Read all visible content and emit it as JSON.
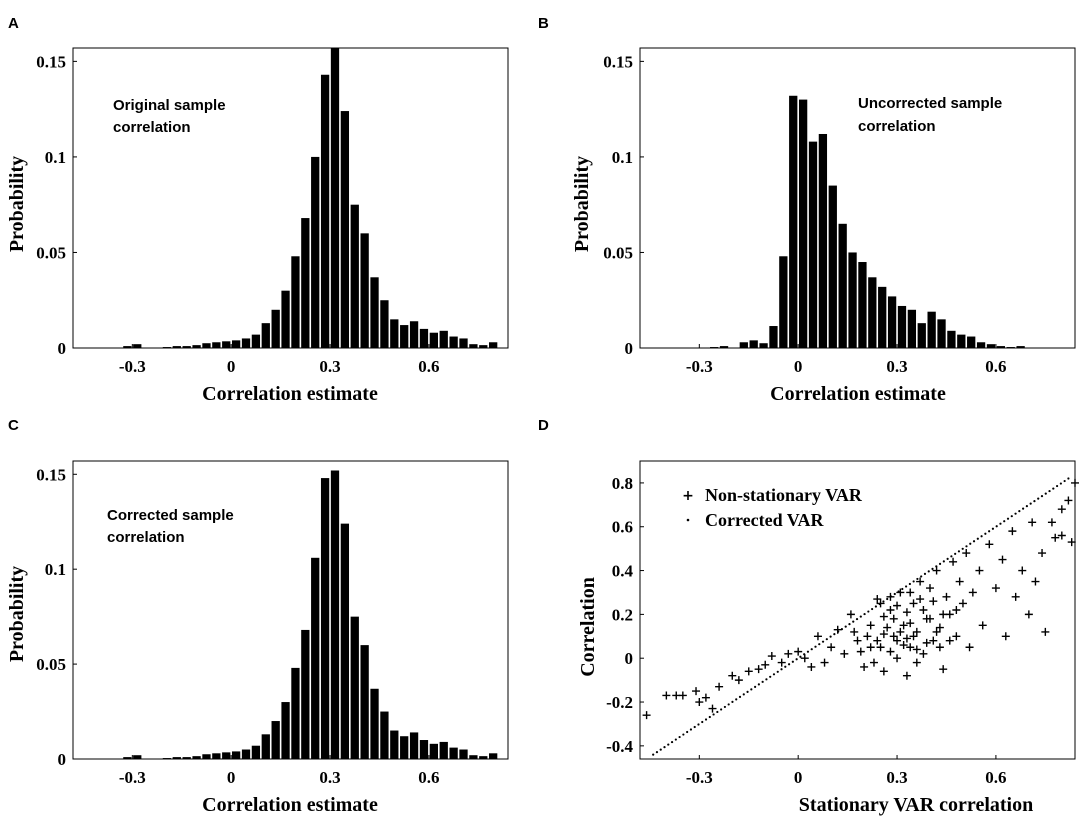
{
  "colors": {
    "bars": "#000000",
    "axes": "#000000",
    "background": "#ffffff"
  },
  "chart_data": [
    {
      "type": "bar",
      "panel": "A",
      "annotation": [
        "Original sample",
        "correlation"
      ],
      "xlabel": "Correlation estimate",
      "ylabel": "Probability",
      "xlim": [
        -0.48,
        0.84
      ],
      "ylim": [
        0,
        0.157
      ],
      "xticks": [
        -0.3,
        0,
        0.3,
        0.6
      ],
      "xtick_labels": [
        "-0.3",
        "0",
        "0.3",
        "0.6"
      ],
      "yticks": [
        0,
        0.05,
        0.1,
        0.15
      ],
      "ytick_labels": [
        "0",
        "0.05",
        "0.1",
        "0.15"
      ],
      "bin_width": 0.03,
      "bin_centers": [
        -0.435,
        -0.405,
        -0.375,
        -0.345,
        -0.315,
        -0.285,
        -0.255,
        -0.225,
        -0.195,
        -0.165,
        -0.135,
        -0.105,
        -0.075,
        -0.045,
        -0.015,
        0.015,
        0.045,
        0.075,
        0.105,
        0.135,
        0.165,
        0.195,
        0.225,
        0.255,
        0.285,
        0.315,
        0.345,
        0.375,
        0.405,
        0.435,
        0.465,
        0.495,
        0.525,
        0.555,
        0.585,
        0.615,
        0.645,
        0.675,
        0.705,
        0.735,
        0.765,
        0.795
      ],
      "values": [
        0,
        0,
        0,
        0,
        0.001,
        0.002,
        0,
        0,
        0.0005,
        0.001,
        0.001,
        0.0015,
        0.0025,
        0.003,
        0.0035,
        0.004,
        0.005,
        0.007,
        0.013,
        0.02,
        0.03,
        0.048,
        0.068,
        0.1,
        0.143,
        0.157,
        0.124,
        0.075,
        0.06,
        0.037,
        0.025,
        0.015,
        0.012,
        0.014,
        0.01,
        0.008,
        0.009,
        0.006,
        0.005,
        0.002,
        0.0015,
        0.003
      ]
    },
    {
      "type": "bar",
      "panel": "B",
      "annotation": [
        "Uncorrected sample",
        "correlation"
      ],
      "xlabel": "Correlation estimate",
      "ylabel": "Probability",
      "xlim": [
        -0.48,
        0.84
      ],
      "ylim": [
        0,
        0.157
      ],
      "xticks": [
        -0.3,
        0,
        0.3,
        0.6
      ],
      "xtick_labels": [
        "-0.3",
        "0",
        "0.3",
        "0.6"
      ],
      "yticks": [
        0,
        0.05,
        0.1,
        0.15
      ],
      "ytick_labels": [
        "0",
        "0.05",
        "0.1",
        "0.15"
      ],
      "bin_width": 0.03,
      "bin_centers": [
        -0.435,
        -0.405,
        -0.375,
        -0.345,
        -0.315,
        -0.285,
        -0.255,
        -0.225,
        -0.195,
        -0.165,
        -0.135,
        -0.105,
        -0.075,
        -0.045,
        -0.015,
        0.015,
        0.045,
        0.075,
        0.105,
        0.135,
        0.165,
        0.195,
        0.225,
        0.255,
        0.285,
        0.315,
        0.345,
        0.375,
        0.405,
        0.435,
        0.465,
        0.495,
        0.525,
        0.555,
        0.585,
        0.615,
        0.645,
        0.675,
        0.705,
        0.735,
        0.765,
        0.795
      ],
      "values": [
        0,
        0,
        0,
        0,
        0,
        0,
        0.0005,
        0.001,
        0,
        0.003,
        0.004,
        0.0025,
        0.0115,
        0.048,
        0.132,
        0.13,
        0.108,
        0.112,
        0.085,
        0.065,
        0.05,
        0.045,
        0.037,
        0.032,
        0.027,
        0.022,
        0.02,
        0.013,
        0.019,
        0.015,
        0.009,
        0.007,
        0.006,
        0.003,
        0.002,
        0.001,
        0.0005,
        0.001,
        0,
        0,
        0,
        0
      ]
    },
    {
      "type": "bar",
      "panel": "C",
      "annotation": [
        "Corrected sample",
        "correlation"
      ],
      "xlabel": "Correlation estimate",
      "ylabel": "Probability",
      "xlim": [
        -0.48,
        0.84
      ],
      "ylim": [
        0,
        0.157
      ],
      "xticks": [
        -0.3,
        0,
        0.3,
        0.6
      ],
      "xtick_labels": [
        "-0.3",
        "0",
        "0.3",
        "0.6"
      ],
      "yticks": [
        0,
        0.05,
        0.1,
        0.15
      ],
      "ytick_labels": [
        "0",
        "0.05",
        "0.1",
        "0.15"
      ],
      "bin_width": 0.03,
      "bin_centers": [
        -0.435,
        -0.405,
        -0.375,
        -0.345,
        -0.315,
        -0.285,
        -0.255,
        -0.225,
        -0.195,
        -0.165,
        -0.135,
        -0.105,
        -0.075,
        -0.045,
        -0.015,
        0.015,
        0.045,
        0.075,
        0.105,
        0.135,
        0.165,
        0.195,
        0.225,
        0.255,
        0.285,
        0.315,
        0.345,
        0.375,
        0.405,
        0.435,
        0.465,
        0.495,
        0.525,
        0.555,
        0.585,
        0.615,
        0.645,
        0.675,
        0.705,
        0.735,
        0.765,
        0.795
      ],
      "values": [
        0,
        0,
        0,
        0,
        0.001,
        0.002,
        0,
        0,
        0.0005,
        0.001,
        0.001,
        0.0015,
        0.0025,
        0.003,
        0.0035,
        0.004,
        0.005,
        0.007,
        0.013,
        0.02,
        0.03,
        0.048,
        0.068,
        0.106,
        0.148,
        0.152,
        0.124,
        0.075,
        0.06,
        0.037,
        0.025,
        0.015,
        0.012,
        0.014,
        0.01,
        0.008,
        0.009,
        0.006,
        0.005,
        0.002,
        0.0015,
        0.003
      ]
    },
    {
      "type": "scatter",
      "panel": "D",
      "xlabel": "Stationary VAR correlation",
      "ylabel": "Correlation",
      "xlim": [
        -0.48,
        0.84
      ],
      "ylim": [
        -0.46,
        0.9
      ],
      "xticks": [
        -0.3,
        0,
        0.3,
        0.6
      ],
      "xtick_labels": [
        "-0.3",
        "0",
        "0.3",
        "0.6"
      ],
      "yticks": [
        -0.4,
        -0.2,
        0,
        0.2,
        0.4,
        0.6,
        0.8
      ],
      "ytick_labels": [
        "-0.4",
        "-0.2",
        "0",
        "0.2",
        "0.4",
        "0.6",
        "0.8"
      ],
      "legend": {
        "placement": "top-left",
        "entries": [
          "Non-stationary VAR",
          "Corrected VAR"
        ]
      },
      "series": [
        {
          "name": "Non-stationary VAR",
          "marker": "+",
          "points": [
            [
              -0.46,
              -0.26
            ],
            [
              -0.4,
              -0.17
            ],
            [
              -0.37,
              -0.17
            ],
            [
              -0.35,
              -0.17
            ],
            [
              -0.31,
              -0.15
            ],
            [
              -0.3,
              -0.2
            ],
            [
              -0.28,
              -0.18
            ],
            [
              -0.26,
              -0.23
            ],
            [
              -0.24,
              -0.13
            ],
            [
              -0.2,
              -0.08
            ],
            [
              -0.18,
              -0.1
            ],
            [
              -0.15,
              -0.06
            ],
            [
              -0.12,
              -0.05
            ],
            [
              -0.1,
              -0.03
            ],
            [
              -0.08,
              0.01
            ],
            [
              -0.05,
              -0.02
            ],
            [
              -0.03,
              0.02
            ],
            [
              0.0,
              0.03
            ],
            [
              0.02,
              0.0
            ],
            [
              0.04,
              -0.04
            ],
            [
              0.06,
              0.1
            ],
            [
              0.08,
              -0.02
            ],
            [
              0.1,
              0.05
            ],
            [
              0.12,
              0.13
            ],
            [
              0.14,
              0.02
            ],
            [
              0.16,
              0.2
            ],
            [
              0.18,
              0.08
            ],
            [
              0.2,
              -0.04
            ],
            [
              0.22,
              0.15
            ],
            [
              0.24,
              0.27
            ],
            [
              0.25,
              0.05
            ],
            [
              0.26,
              -0.06
            ],
            [
              0.28,
              0.22
            ],
            [
              0.29,
              0.1
            ],
            [
              0.3,
              0.0
            ],
            [
              0.31,
              0.3
            ],
            [
              0.32,
              0.15
            ],
            [
              0.33,
              -0.08
            ],
            [
              0.34,
              0.05
            ],
            [
              0.35,
              0.25
            ],
            [
              0.36,
              0.12
            ],
            [
              0.37,
              0.35
            ],
            [
              0.38,
              0.02
            ],
            [
              0.39,
              0.18
            ],
            [
              0.4,
              0.32
            ],
            [
              0.41,
              0.08
            ],
            [
              0.42,
              0.4
            ],
            [
              0.43,
              0.14
            ],
            [
              0.44,
              -0.05
            ],
            [
              0.45,
              0.28
            ],
            [
              0.46,
              0.2
            ],
            [
              0.47,
              0.44
            ],
            [
              0.48,
              0.1
            ],
            [
              0.49,
              0.35
            ],
            [
              0.5,
              0.25
            ],
            [
              0.51,
              0.48
            ],
            [
              0.52,
              0.05
            ],
            [
              0.53,
              0.3
            ],
            [
              0.55,
              0.4
            ],
            [
              0.56,
              0.15
            ],
            [
              0.58,
              0.52
            ],
            [
              0.6,
              0.32
            ],
            [
              0.62,
              0.45
            ],
            [
              0.63,
              0.1
            ],
            [
              0.65,
              0.58
            ],
            [
              0.66,
              0.28
            ],
            [
              0.68,
              0.4
            ],
            [
              0.7,
              0.2
            ],
            [
              0.71,
              0.62
            ],
            [
              0.72,
              0.35
            ],
            [
              0.74,
              0.48
            ],
            [
              0.75,
              0.12
            ],
            [
              0.77,
              0.62
            ],
            [
              0.78,
              0.55
            ],
            [
              0.8,
              0.68
            ],
            [
              0.8,
              0.56
            ],
            [
              0.82,
              0.72
            ],
            [
              0.83,
              0.53
            ],
            [
              0.84,
              0.8
            ],
            [
              0.27,
              0.14
            ],
            [
              0.33,
              0.09
            ],
            [
              0.29,
              0.18
            ],
            [
              0.36,
              0.04
            ],
            [
              0.31,
              0.12
            ],
            [
              0.24,
              0.08
            ],
            [
              0.38,
              0.22
            ],
            [
              0.34,
              0.16
            ],
            [
              0.28,
              0.03
            ],
            [
              0.42,
              0.12
            ],
            [
              0.21,
              0.1
            ],
            [
              0.37,
              0.27
            ],
            [
              0.26,
              0.19
            ],
            [
              0.32,
              0.06
            ],
            [
              0.44,
              0.2
            ],
            [
              0.19,
              0.03
            ],
            [
              0.35,
              0.1
            ],
            [
              0.4,
              0.18
            ],
            [
              0.3,
              0.24
            ],
            [
              0.23,
              -0.02
            ],
            [
              0.46,
              0.08
            ],
            [
              0.25,
              0.25
            ],
            [
              0.33,
              0.21
            ],
            [
              0.39,
              0.07
            ],
            [
              0.28,
              0.28
            ],
            [
              0.17,
              0.12
            ],
            [
              0.41,
              0.26
            ],
            [
              0.36,
              -0.02
            ],
            [
              0.3,
              0.08
            ],
            [
              0.22,
              0.05
            ],
            [
              0.48,
              0.22
            ],
            [
              0.34,
              0.3
            ],
            [
              0.26,
              0.11
            ],
            [
              0.43,
              0.05
            ]
          ]
        },
        {
          "name": "Corrected VAR",
          "marker": "dot",
          "relation": "y = x",
          "range": [
            -0.44,
            0.82
          ]
        }
      ]
    }
  ]
}
